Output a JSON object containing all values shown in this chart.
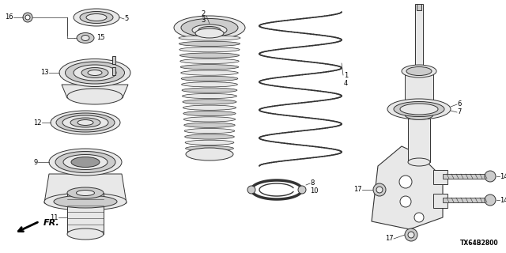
{
  "background_color": "#ffffff",
  "diagram_code": "TX64B2800",
  "line_color": "#333333",
  "fill_light": "#e8e8e8",
  "fill_mid": "#cccccc",
  "fill_dark": "#999999"
}
